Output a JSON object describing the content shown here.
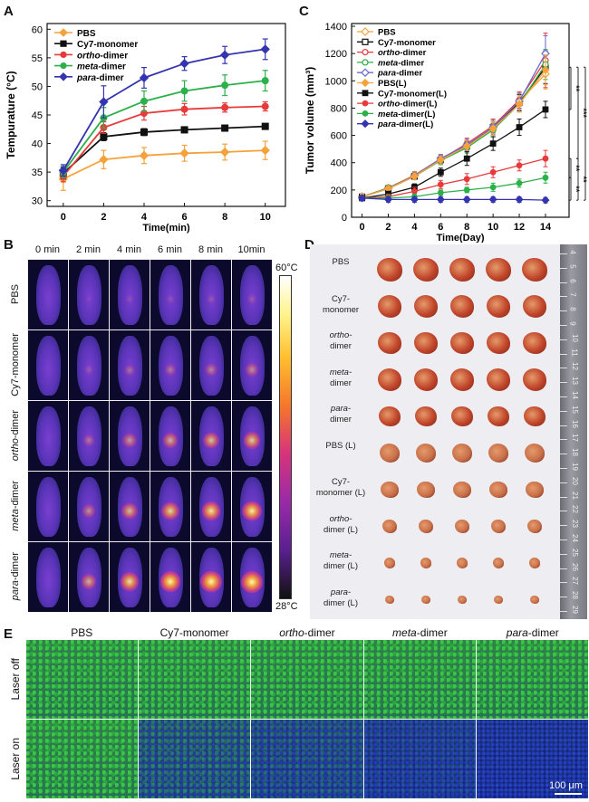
{
  "panels": {
    "A": "A",
    "B": "B",
    "C": "C",
    "D": "D",
    "E": "E"
  },
  "panelA": {
    "ylabel": "Tempurature (°C)",
    "xlabel": "Time(min)",
    "xticks": [
      "0",
      "2",
      "4",
      "6",
      "8",
      "10"
    ],
    "yticks": [
      "30",
      "35",
      "40",
      "45",
      "50",
      "55",
      "60"
    ],
    "legend": [
      {
        "label": "PBS",
        "italic": "",
        "suffix": "",
        "color": "#f5a23a",
        "marker": "diamond"
      },
      {
        "label": "Cy7-monomer",
        "italic": "",
        "suffix": "",
        "color": "#111111",
        "marker": "square"
      },
      {
        "label": "",
        "italic": "ortho",
        "suffix": "-dimer",
        "color": "#e83a3a",
        "marker": "circle"
      },
      {
        "label": "",
        "italic": "meta",
        "suffix": "-dimer",
        "color": "#2bb04a",
        "marker": "circle"
      },
      {
        "label": "",
        "italic": "para",
        "suffix": "-dimer",
        "color": "#3434b0",
        "marker": "diamond"
      }
    ]
  },
  "chart_data": [
    {
      "type": "line",
      "xlabel": "Time(min)",
      "ylabel": "Tempurature (°C)",
      "xlim": [
        -0.8,
        11
      ],
      "ylim": [
        29,
        61
      ],
      "x": [
        0,
        2,
        4,
        6,
        8,
        10
      ],
      "series": [
        {
          "name": "PBS",
          "values": [
            33.8,
            37.2,
            37.9,
            38.3,
            38.5,
            38.8
          ],
          "errors": [
            2.0,
            1.6,
            1.4,
            1.4,
            1.4,
            1.6
          ]
        },
        {
          "name": "Cy7-monomer",
          "values": [
            34.8,
            41.2,
            42.0,
            42.4,
            42.7,
            43.0
          ],
          "errors": [
            1.0,
            0.7,
            0.6,
            0.5,
            0.5,
            0.5
          ]
        },
        {
          "name": "ortho-dimer",
          "values": [
            34.3,
            42.8,
            45.3,
            46.0,
            46.3,
            46.5
          ],
          "errors": [
            1.0,
            1.0,
            1.2,
            1.0,
            0.8,
            0.8
          ]
        },
        {
          "name": "meta-dimer",
          "values": [
            35.0,
            44.5,
            47.4,
            49.2,
            50.2,
            51.0
          ],
          "errors": [
            1.0,
            1.8,
            1.8,
            1.8,
            1.8,
            1.8
          ]
        },
        {
          "name": "para-dimer",
          "values": [
            35.3,
            47.3,
            51.5,
            54.0,
            55.5,
            56.5
          ],
          "errors": [
            1.0,
            2.8,
            1.8,
            1.2,
            1.5,
            1.8
          ]
        }
      ]
    },
    {
      "type": "line",
      "xlabel": "Time(Day)",
      "ylabel": "Tumor volume (mm³)",
      "xlim": [
        -0.8,
        15.8
      ],
      "ylim": [
        0,
        1420
      ],
      "x": [
        0,
        2,
        4,
        6,
        8,
        10,
        12,
        14
      ],
      "xticks": [
        "0",
        "2",
        "4",
        "6",
        "8",
        "10",
        "12",
        "14"
      ],
      "yticks": [
        "0",
        "200",
        "400",
        "600",
        "800",
        "1000",
        "1200",
        "1400"
      ],
      "significance": [
        "**",
        "***",
        "***",
        "**",
        "**",
        "**"
      ],
      "legend": [
        {
          "label": "PBS",
          "italic": "",
          "suffix": "",
          "color": "#f5a23a",
          "open": true,
          "marker": "diamond"
        },
        {
          "label": "Cy7-monomer",
          "italic": "",
          "suffix": "",
          "color": "#111111",
          "open": true,
          "marker": "square"
        },
        {
          "label": "",
          "italic": "ortho",
          "suffix": "-dimer",
          "color": "#e83a3a",
          "open": true,
          "marker": "circle"
        },
        {
          "label": "",
          "italic": "meta",
          "suffix": "-dimer",
          "color": "#2bb04a",
          "open": true,
          "marker": "circle"
        },
        {
          "label": "",
          "italic": "para",
          "suffix": "-dimer",
          "color": "#6a6ad0",
          "open": true,
          "marker": "diamond"
        },
        {
          "label": "PBS(L)",
          "italic": "",
          "suffix": "",
          "color": "#f5a23a",
          "open": false,
          "marker": "diamond"
        },
        {
          "label": "Cy7-monomer(L)",
          "italic": "",
          "suffix": "",
          "color": "#111111",
          "open": false,
          "marker": "square"
        },
        {
          "label": "",
          "italic": "ortho",
          "suffix": "-dimer(L)",
          "color": "#e83a3a",
          "open": false,
          "marker": "circle"
        },
        {
          "label": "",
          "italic": "meta",
          "suffix": "-dimer(L)",
          "color": "#2bb04a",
          "open": false,
          "marker": "circle"
        },
        {
          "label": "",
          "italic": "para",
          "suffix": "-dimer(L)",
          "color": "#3434b0",
          "open": false,
          "marker": "diamond"
        }
      ],
      "series": [
        {
          "name": "PBS",
          "values": [
            150,
            215,
            310,
            430,
            530,
            650,
            850,
            1050
          ],
          "errors": [
            20,
            20,
            25,
            30,
            40,
            50,
            60,
            110
          ]
        },
        {
          "name": "Cy7-monomer",
          "values": [
            150,
            210,
            300,
            420,
            520,
            660,
            840,
            1100
          ],
          "errors": [
            20,
            20,
            25,
            30,
            40,
            50,
            60,
            120
          ]
        },
        {
          "name": "ortho-dimer",
          "values": [
            150,
            215,
            305,
            425,
            540,
            670,
            860,
            1150
          ],
          "errors": [
            20,
            20,
            25,
            30,
            40,
            50,
            60,
            200
          ]
        },
        {
          "name": "meta-dimer",
          "values": [
            150,
            215,
            300,
            415,
            510,
            640,
            830,
            1120
          ],
          "errors": [
            20,
            20,
            25,
            30,
            40,
            50,
            60,
            110
          ]
        },
        {
          "name": "para-dimer",
          "values": [
            150,
            210,
            305,
            430,
            530,
            660,
            850,
            1200
          ],
          "errors": [
            20,
            20,
            25,
            30,
            40,
            50,
            60,
            130
          ]
        },
        {
          "name": "PBS(L)",
          "values": [
            150,
            210,
            300,
            420,
            520,
            650,
            830,
            1080
          ],
          "errors": [
            20,
            20,
            25,
            30,
            40,
            50,
            60,
            110
          ]
        },
        {
          "name": "Cy7-monomer(L)",
          "values": [
            140,
            170,
            220,
            330,
            430,
            540,
            660,
            790
          ],
          "errors": [
            20,
            20,
            25,
            30,
            50,
            50,
            60,
            60
          ]
        },
        {
          "name": "ortho-dimer(L)",
          "values": [
            140,
            150,
            190,
            240,
            280,
            330,
            380,
            430
          ],
          "errors": [
            20,
            20,
            30,
            30,
            40,
            40,
            40,
            60
          ]
        },
        {
          "name": "meta-dimer(L)",
          "values": [
            140,
            140,
            150,
            180,
            200,
            220,
            250,
            290
          ],
          "errors": [
            20,
            20,
            20,
            20,
            20,
            30,
            30,
            40
          ]
        },
        {
          "name": "para-dimer(L)",
          "values": [
            140,
            130,
            130,
            130,
            130,
            130,
            130,
            125
          ],
          "errors": [
            20,
            20,
            20,
            20,
            20,
            20,
            20,
            20
          ]
        }
      ]
    }
  ],
  "panelB": {
    "cols": [
      "0 min",
      "2 min",
      "4 min",
      "6 min",
      "8 min",
      "10min"
    ],
    "rows": [
      {
        "label": "PBS",
        "italic": "",
        "suffix": ""
      },
      {
        "label": "Cy7-monomer",
        "italic": "",
        "suffix": ""
      },
      {
        "label": "",
        "italic": "ortho",
        "suffix": "-dimer"
      },
      {
        "label": "",
        "italic": "meta",
        "suffix": "-dimer"
      },
      {
        "label": "",
        "italic": "para",
        "suffix": "-dimer"
      }
    ],
    "intensity": [
      [
        0.0,
        0.05,
        0.1,
        0.12,
        0.14,
        0.16
      ],
      [
        0.0,
        0.15,
        0.25,
        0.3,
        0.35,
        0.4
      ],
      [
        0.0,
        0.3,
        0.45,
        0.55,
        0.62,
        0.68
      ],
      [
        0.0,
        0.4,
        0.6,
        0.72,
        0.8,
        0.85
      ],
      [
        0.0,
        0.55,
        0.78,
        0.9,
        0.95,
        1.0
      ]
    ],
    "scale_max": "60°C",
    "scale_min": "28°C"
  },
  "panelD": {
    "rows": [
      {
        "l1": "PBS",
        "l1i": "",
        "l2": "",
        "l2i": ""
      },
      {
        "l1": "Cy7-",
        "l1i": "",
        "l2": "monomer",
        "l2i": ""
      },
      {
        "l1": "",
        "l1i": "ortho",
        "l2": "dimer",
        "l2i": "",
        "dash": "-"
      },
      {
        "l1": "",
        "l1i": "meta",
        "l2": "dimer",
        "l2i": "",
        "dash": "-"
      },
      {
        "l1": "",
        "l1i": "para",
        "l2": "dimer",
        "l2i": "",
        "dash": "-"
      },
      {
        "l1": "PBS (L)",
        "l1i": "",
        "l2": "",
        "l2i": ""
      },
      {
        "l1": "Cy7-",
        "l1i": "",
        "l2": "monomer (L)",
        "l2i": ""
      },
      {
        "l1": "",
        "l1i": "ortho",
        "l2": "dimer (L)",
        "l2i": "",
        "dash": "-"
      },
      {
        "l1": "",
        "l1i": "meta",
        "l2": "dimer  (L)",
        "l2i": "",
        "dash": "-"
      },
      {
        "l1": "",
        "l1i": "para",
        "l2": "dimer  (L)",
        "l2i": "",
        "dash": "-"
      }
    ],
    "tumor_size": [
      1.0,
      0.95,
      0.9,
      0.92,
      0.85,
      0.8,
      0.68,
      0.55,
      0.42,
      0.32
    ],
    "ruler": [
      "4",
      "5",
      "6",
      "7",
      "8",
      "9",
      "10",
      "11",
      "12",
      "13",
      "14",
      "15",
      "16",
      "17",
      "18",
      "19",
      "20",
      "21",
      "22",
      "23",
      "24",
      "25",
      "26",
      "27",
      "28",
      "29"
    ]
  },
  "panelE": {
    "cols": [
      {
        "label": "PBS",
        "italic": "",
        "suffix": ""
      },
      {
        "label": "Cy7-monomer",
        "italic": "",
        "suffix": ""
      },
      {
        "label": "",
        "italic": "ortho",
        "suffix": "-dimer"
      },
      {
        "label": "",
        "italic": "meta",
        "suffix": "-dimer"
      },
      {
        "label": "",
        "italic": "para",
        "suffix": "-dimer"
      }
    ],
    "rows": [
      "Laser off",
      "Laser on"
    ],
    "green_on": [
      0.95,
      0.35,
      0.25,
      0.15,
      0.08
    ],
    "scalebar": "100 μm"
  }
}
